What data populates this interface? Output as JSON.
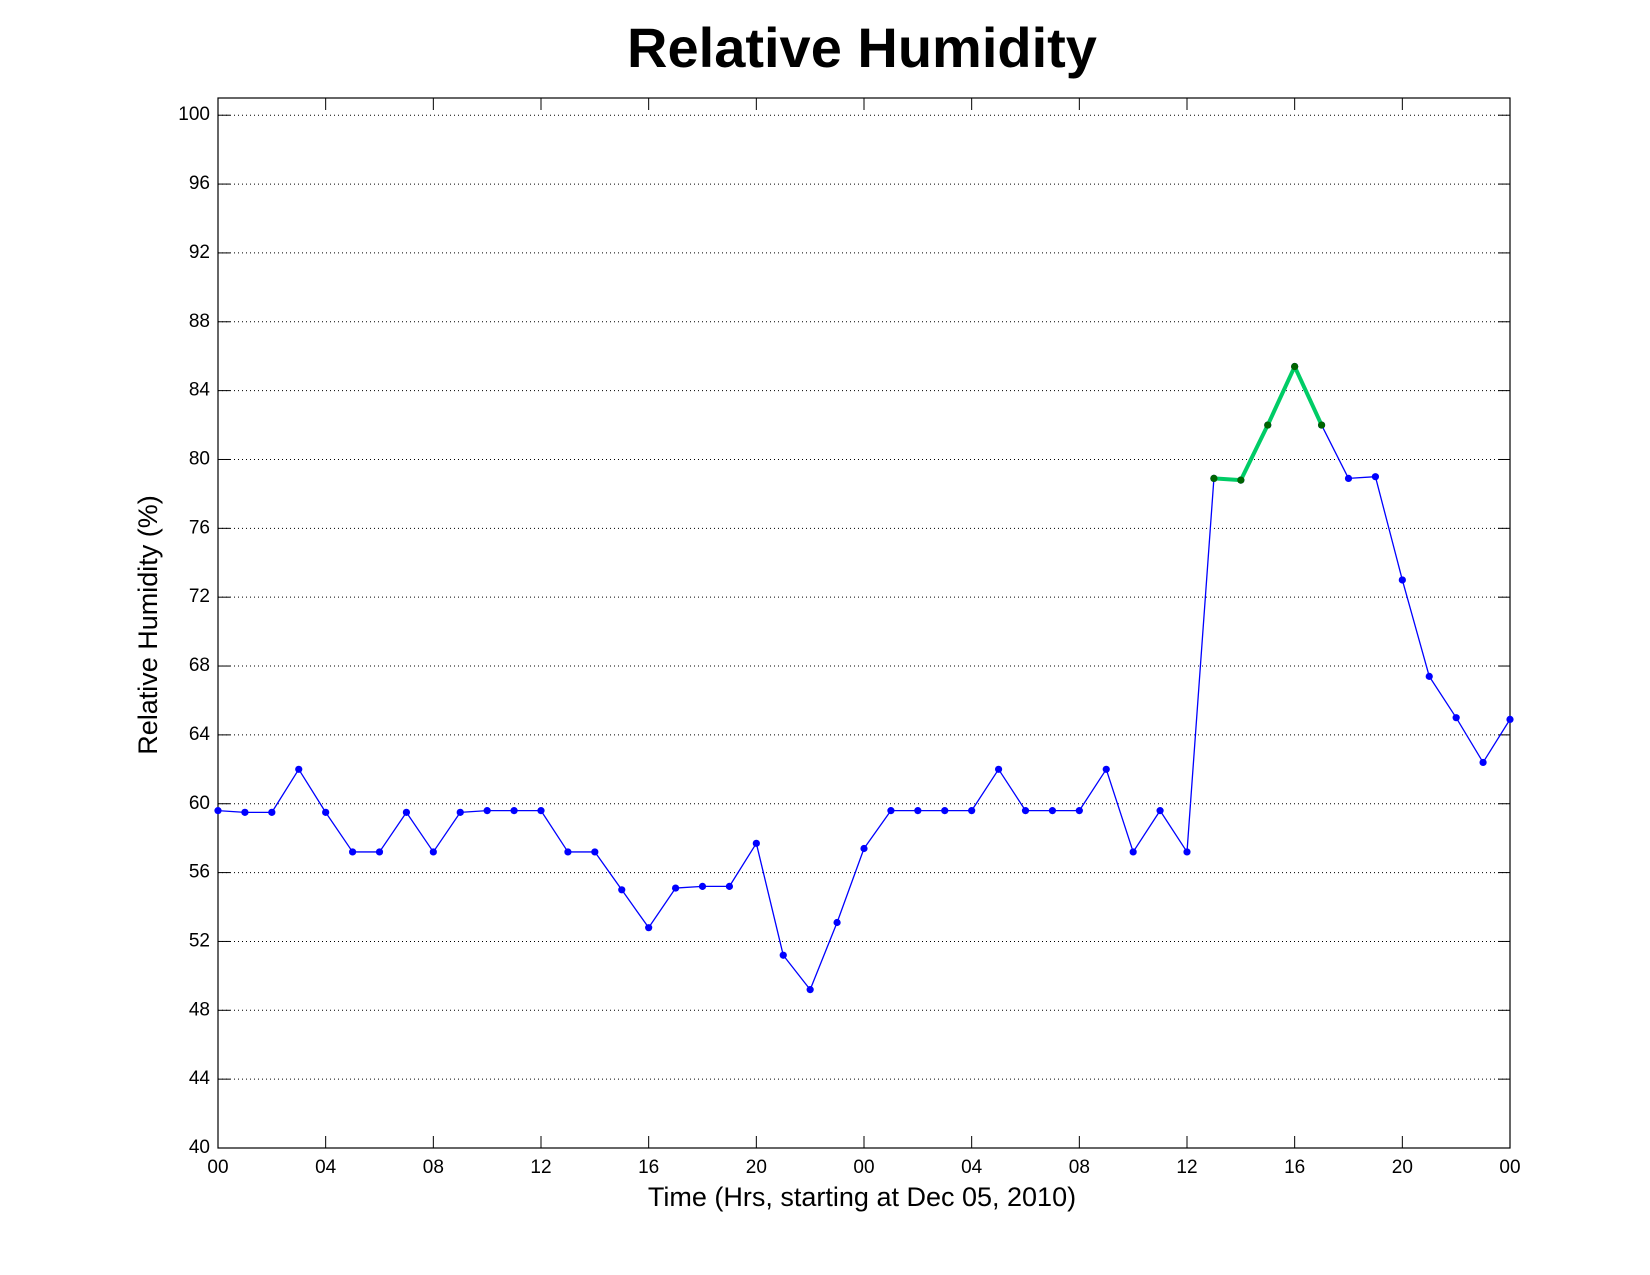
{
  "chart_data": {
    "type": "line",
    "title": "Relative Humidity",
    "xlabel": "Time (Hrs, starting at Dec 05, 2010)",
    "ylabel": "Relative Humidity (%)",
    "x": [
      0,
      1,
      2,
      3,
      4,
      5,
      6,
      7,
      8,
      9,
      10,
      11,
      12,
      13,
      14,
      15,
      16,
      17,
      18,
      19,
      20,
      21,
      22,
      23,
      24,
      25,
      26,
      27,
      28,
      29,
      30,
      31,
      32,
      33,
      34,
      35,
      36,
      37,
      38,
      39,
      40,
      41,
      42,
      43,
      44,
      45,
      46,
      47,
      48
    ],
    "series": [
      {
        "color": "#0000ff",
        "values": [
          59.6,
          59.5,
          59.5,
          62.0,
          59.5,
          57.2,
          57.2,
          59.5,
          57.2,
          59.5,
          59.6,
          59.6,
          59.6,
          57.2,
          57.2,
          55.0,
          52.8,
          55.1,
          55.2,
          55.2,
          57.7,
          51.2,
          49.2,
          53.1,
          57.4,
          59.6,
          59.6,
          59.6,
          59.6,
          62.0,
          59.6,
          59.6,
          59.6,
          62.0,
          57.2,
          59.6,
          57.2,
          78.9,
          78.8,
          82.0,
          85.4,
          82.0,
          78.9,
          79.0,
          73.0,
          67.4,
          65.0,
          62.4,
          64.9
        ]
      },
      {
        "color": "#00cc66",
        "values": [
          null,
          null,
          null,
          null,
          null,
          null,
          null,
          null,
          null,
          null,
          null,
          null,
          null,
          null,
          null,
          null,
          null,
          null,
          null,
          null,
          null,
          null,
          null,
          null,
          null,
          null,
          null,
          null,
          null,
          null,
          null,
          null,
          null,
          null,
          null,
          null,
          null,
          78.9,
          78.8,
          82.0,
          85.4,
          82.0,
          null,
          null,
          null,
          null,
          null,
          null,
          null
        ]
      }
    ],
    "xlim": [
      0,
      48
    ],
    "ylim": [
      40,
      101
    ],
    "xticks": [
      {
        "value": 0,
        "label": "00"
      },
      {
        "value": 4,
        "label": "04"
      },
      {
        "value": 8,
        "label": "08"
      },
      {
        "value": 12,
        "label": "12"
      },
      {
        "value": 16,
        "label": "16"
      },
      {
        "value": 20,
        "label": "20"
      },
      {
        "value": 24,
        "label": "00"
      },
      {
        "value": 28,
        "label": "04"
      },
      {
        "value": 32,
        "label": "08"
      },
      {
        "value": 36,
        "label": "12"
      },
      {
        "value": 40,
        "label": "16"
      },
      {
        "value": 44,
        "label": "20"
      },
      {
        "value": 48,
        "label": "00"
      }
    ],
    "yticks": [
      40,
      44,
      48,
      52,
      56,
      60,
      64,
      68,
      72,
      76,
      80,
      84,
      88,
      92,
      96,
      100
    ],
    "grid": true
  }
}
